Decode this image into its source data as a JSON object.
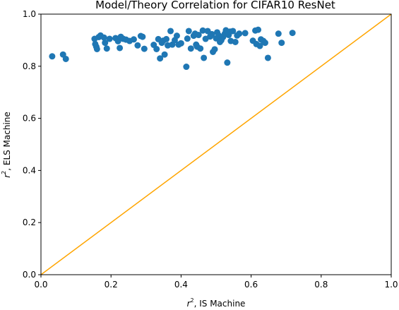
{
  "chart_data": {
    "type": "scatter",
    "title": "Model/Theory Correlation for CIFAR10 ResNet",
    "xlabel_prefix": "r",
    "xlabel_sup": "2",
    "xlabel_suffix": ", IS Machine",
    "ylabel_prefix": "r",
    "ylabel_sup": "2",
    "ylabel_suffix": ", ELS Machine",
    "xlim": [
      0,
      1
    ],
    "ylim": [
      0,
      1
    ],
    "xticks": [
      "0.0",
      "0.2",
      "0.4",
      "0.6",
      "0.8",
      "1.0"
    ],
    "yticks": [
      "0.0",
      "0.2",
      "0.4",
      "0.6",
      "0.8",
      "1.0"
    ],
    "grid": false,
    "reference_line": {
      "from": [
        0,
        0
      ],
      "to": [
        1,
        1
      ],
      "color": "#ffa500"
    },
    "point_color": "#1f77b4",
    "points": [
      [
        0.032,
        0.838
      ],
      [
        0.063,
        0.845
      ],
      [
        0.071,
        0.828
      ],
      [
        0.153,
        0.905
      ],
      [
        0.155,
        0.885
      ],
      [
        0.158,
        0.875
      ],
      [
        0.16,
        0.866
      ],
      [
        0.165,
        0.912
      ],
      [
        0.17,
        0.918
      ],
      [
        0.18,
        0.91
      ],
      [
        0.183,
        0.89
      ],
      [
        0.188,
        0.868
      ],
      [
        0.196,
        0.905
      ],
      [
        0.213,
        0.908
      ],
      [
        0.22,
        0.896
      ],
      [
        0.225,
        0.87
      ],
      [
        0.228,
        0.913
      ],
      [
        0.235,
        0.905
      ],
      [
        0.243,
        0.902
      ],
      [
        0.253,
        0.897
      ],
      [
        0.265,
        0.903
      ],
      [
        0.276,
        0.88
      ],
      [
        0.285,
        0.916
      ],
      [
        0.29,
        0.913
      ],
      [
        0.295,
        0.867
      ],
      [
        0.322,
        0.882
      ],
      [
        0.33,
        0.866
      ],
      [
        0.335,
        0.904
      ],
      [
        0.34,
        0.83
      ],
      [
        0.345,
        0.89
      ],
      [
        0.349,
        0.898
      ],
      [
        0.353,
        0.845
      ],
      [
        0.358,
        0.904
      ],
      [
        0.362,
        0.88
      ],
      [
        0.37,
        0.935
      ],
      [
        0.375,
        0.883
      ],
      [
        0.382,
        0.9
      ],
      [
        0.388,
        0.917
      ],
      [
        0.393,
        0.883
      ],
      [
        0.4,
        0.888
      ],
      [
        0.415,
        0.798
      ],
      [
        0.418,
        0.906
      ],
      [
        0.422,
        0.935
      ],
      [
        0.428,
        0.868
      ],
      [
        0.436,
        0.917
      ],
      [
        0.44,
        0.925
      ],
      [
        0.443,
        0.883
      ],
      [
        0.446,
        0.875
      ],
      [
        0.45,
        0.92
      ],
      [
        0.455,
        0.868
      ],
      [
        0.462,
        0.937
      ],
      [
        0.465,
        0.832
      ],
      [
        0.47,
        0.905
      ],
      [
        0.476,
        0.935
      ],
      [
        0.483,
        0.914
      ],
      [
        0.488,
        0.923
      ],
      [
        0.491,
        0.855
      ],
      [
        0.496,
        0.865
      ],
      [
        0.5,
        0.907
      ],
      [
        0.503,
        0.93
      ],
      [
        0.508,
        0.918
      ],
      [
        0.511,
        0.893
      ],
      [
        0.515,
        0.9
      ],
      [
        0.52,
        0.912
      ],
      [
        0.525,
        0.925
      ],
      [
        0.528,
        0.938
      ],
      [
        0.532,
        0.814
      ],
      [
        0.536,
        0.92
      ],
      [
        0.54,
        0.933
      ],
      [
        0.542,
        0.897
      ],
      [
        0.548,
        0.935
      ],
      [
        0.555,
        0.893
      ],
      [
        0.56,
        0.918
      ],
      [
        0.566,
        0.925
      ],
      [
        0.583,
        0.927
      ],
      [
        0.605,
        0.898
      ],
      [
        0.612,
        0.937
      ],
      [
        0.615,
        0.885
      ],
      [
        0.62,
        0.94
      ],
      [
        0.625,
        0.878
      ],
      [
        0.628,
        0.903
      ],
      [
        0.635,
        0.897
      ],
      [
        0.64,
        0.89
      ],
      [
        0.648,
        0.832
      ],
      [
        0.678,
        0.925
      ],
      [
        0.687,
        0.89
      ],
      [
        0.718,
        0.928
      ]
    ]
  }
}
